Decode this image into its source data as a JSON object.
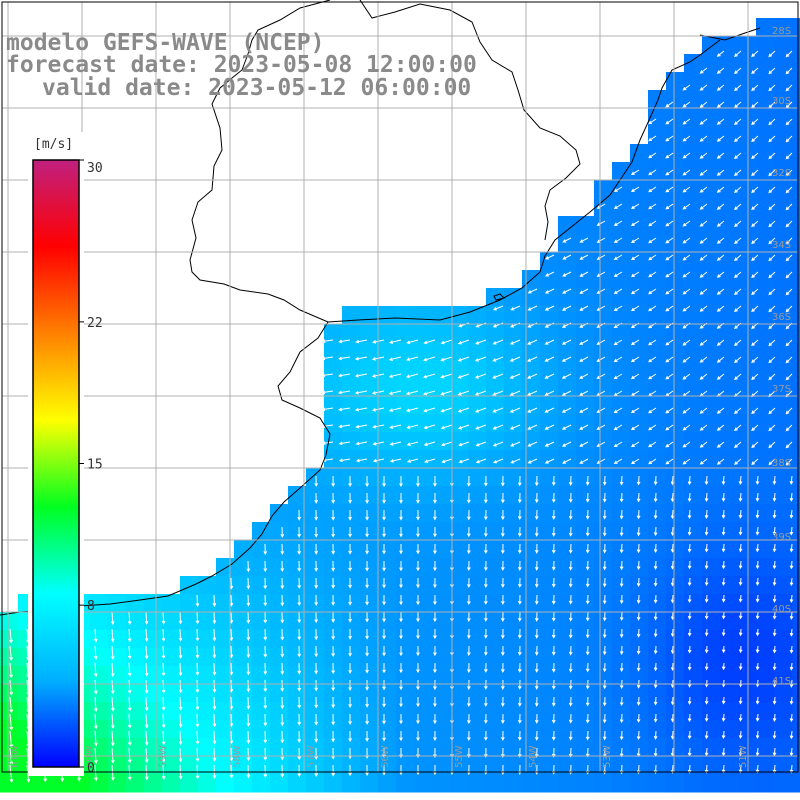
{
  "title": {
    "model": "modelo GEFS-WAVE (NCEP)",
    "forecast": "forecast date: 2023-05-08 12:00:00",
    "valid": "valid date: 2023-05-12 06:00:00"
  },
  "colorbar": {
    "unit": "[m/s]",
    "min": 0,
    "max": 30,
    "tick_labels": [
      "30",
      "22",
      "15",
      "8",
      "0"
    ],
    "tick_values": [
      30,
      22,
      15,
      8,
      0
    ],
    "stops": [
      "#0000ff",
      "#00b0ff",
      "#00ffff",
      "#00ff20",
      "#ffff00",
      "#ff8000",
      "#ff0000",
      "#c0207f"
    ]
  },
  "grid": {
    "lat_labels": [
      "28S",
      "30S",
      "32S",
      "34S",
      "36S",
      "37S",
      "38S",
      "39S",
      "40S",
      "41S"
    ],
    "lon_labels": [
      "61W",
      "60W",
      "59W",
      "58W",
      "57W",
      "56W",
      "55W",
      "54W",
      "53W",
      "51W"
    ]
  }
}
